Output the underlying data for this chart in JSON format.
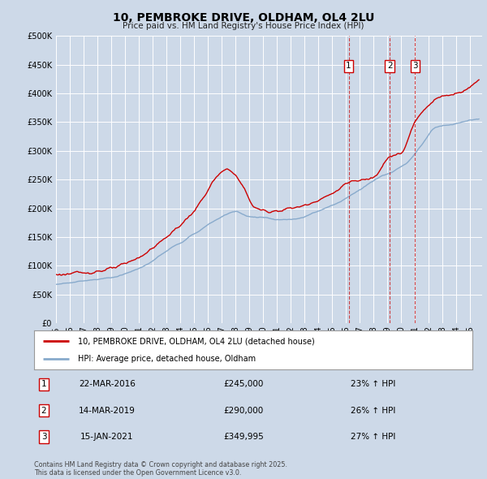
{
  "title": "10, PEMBROKE DRIVE, OLDHAM, OL4 2LU",
  "subtitle": "Price paid vs. HM Land Registry's House Price Index (HPI)",
  "ylim": [
    0,
    500000
  ],
  "yticks": [
    0,
    50000,
    100000,
    150000,
    200000,
    250000,
    300000,
    350000,
    400000,
    450000,
    500000
  ],
  "xlim_start": 1995.0,
  "xlim_end": 2025.9,
  "background_color": "#cdd9e8",
  "plot_bg_color": "#cdd9e8",
  "grid_color": "#ffffff",
  "sale_dates": [
    2016.22,
    2019.2,
    2021.04
  ],
  "sale_prices": [
    245000,
    290000,
    349995
  ],
  "sale_labels": [
    "1",
    "2",
    "3"
  ],
  "legend_entries": [
    "10, PEMBROKE DRIVE, OLDHAM, OL4 2LU (detached house)",
    "HPI: Average price, detached house, Oldham"
  ],
  "table_rows": [
    [
      "1",
      "22-MAR-2016",
      "£245,000",
      "23% ↑ HPI"
    ],
    [
      "2",
      "14-MAR-2019",
      "£290,000",
      "26% ↑ HPI"
    ],
    [
      "3",
      "15-JAN-2021",
      "£349,995",
      "27% ↑ HPI"
    ]
  ],
  "footer": "Contains HM Land Registry data © Crown copyright and database right 2025.\nThis data is licensed under the Open Government Licence v3.0.",
  "red_color": "#cc0000",
  "blue_color": "#88aacc"
}
